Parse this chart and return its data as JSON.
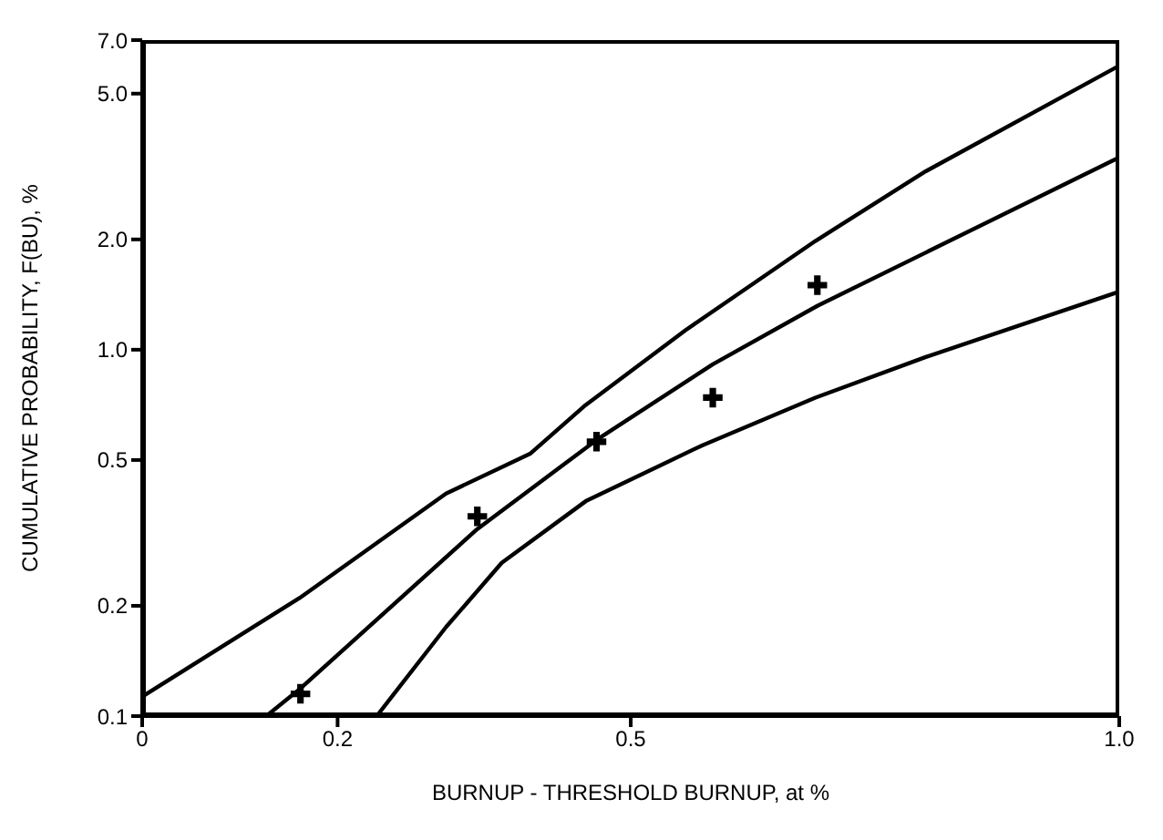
{
  "chart_data": {
    "type": "line",
    "xlabel": "BURNUP - THRESHOLD BURNUP, at %",
    "ylabel": "CUMULATIVE PROBABILITY, F(BU), %",
    "log": "y",
    "grid": false,
    "xlim": [
      0,
      1.0
    ],
    "xticks": [
      0,
      {
        "value": 0.2,
        "label": "0.2"
      },
      {
        "value": 0.5,
        "label": "0.5"
      },
      {
        "value": 1.0,
        "label": "1.0"
      }
    ],
    "ylim": [
      0.1,
      7.0
    ],
    "yticks": [
      {
        "value": 0.1,
        "label": "0.1"
      },
      {
        "value": 0.2,
        "label": "0.2"
      },
      {
        "value": 0.5,
        "label": "0.5"
      },
      {
        "value": 1.0,
        "label": "1.0"
      },
      {
        "value": 2.0,
        "label": "2.0"
      },
      {
        "value": 5.0,
        "label": "5.0"
      },
      {
        "value": 7.0,
        "label": "7.0"
      }
    ],
    "series": [
      {
        "color": "#000000",
        "line_style": "solid",
        "marker": "none",
        "x": [
          0,
          0.161,
          0.311,
          0.397,
          0.454,
          0.556,
          0.689,
          0.802,
          1.0
        ],
        "values": [
          0.113,
          0.21,
          0.405,
          0.52,
          0.707,
          1.13,
          1.98,
          3.07,
          5.96
        ]
      },
      {
        "color": "#000000",
        "line_style": "solid",
        "marker": "none",
        "x": [
          0.127,
          0.162,
          0.343,
          0.465,
          0.584,
          0.691,
          1.0
        ],
        "values": [
          0.1,
          0.119,
          0.324,
          0.567,
          0.912,
          1.317,
          3.35
        ]
      },
      {
        "color": "#000000",
        "line_style": "solid",
        "marker": "none",
        "x": [
          0.24,
          0.311,
          0.368,
          0.454,
          0.573,
          0.689,
          0.802,
          1.0
        ],
        "values": [
          0.1,
          0.175,
          0.262,
          0.386,
          0.548,
          0.74,
          0.955,
          1.44
        ]
      },
      {
        "type": "scatter",
        "color": "#000000",
        "marker": "cross",
        "x": [
          0.162,
          0.343,
          0.465,
          0.584,
          0.691
        ],
        "values": [
          0.115,
          0.351,
          0.561,
          0.74,
          1.5
        ]
      }
    ]
  }
}
